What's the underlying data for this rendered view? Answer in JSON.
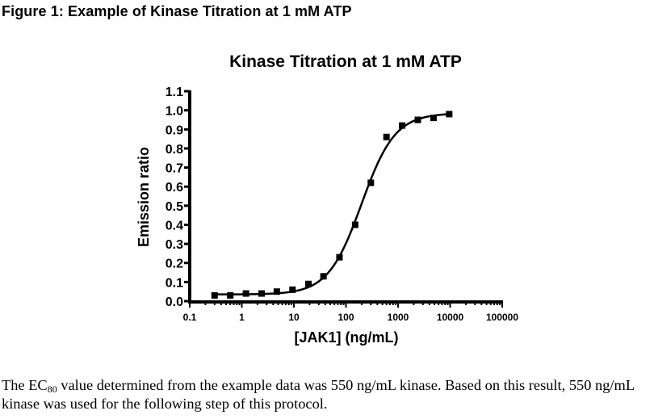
{
  "figure_caption": "Figure 1: Example of Kinase Titration at 1 mM ATP",
  "body_text": {
    "part1": "The EC",
    "subscript": "80",
    "part2": " value determined from the example data was 550 ng/mL kinase.  Based on this result, 550 ng/mL kinase was used for the following step of this protocol."
  },
  "chart_data": {
    "type": "scatter",
    "title": "Kinase Titration at 1 mM ATP",
    "xlabel": "[JAK1] (ng/mL)",
    "ylabel": "Emission ratio",
    "xscale": "log",
    "xlim": [
      0.1,
      100000
    ],
    "ylim": [
      0.0,
      1.1
    ],
    "xticks": [
      "0.1",
      "1",
      "10",
      "100",
      "1000",
      "10000",
      "100000"
    ],
    "xtick_values": [
      0.1,
      1,
      10,
      100,
      1000,
      10000,
      100000
    ],
    "yticks": [
      "0.0",
      "0.1",
      "0.2",
      "0.3",
      "0.4",
      "0.5",
      "0.6",
      "0.7",
      "0.8",
      "0.9",
      "1.0",
      "1.1"
    ],
    "ytick_values": [
      0.0,
      0.1,
      0.2,
      0.3,
      0.4,
      0.5,
      0.6,
      0.7,
      0.8,
      0.9,
      1.0,
      1.1
    ],
    "grid": false,
    "marker": "square",
    "series": [
      {
        "name": "JAK1",
        "x": [
          0.3,
          0.6,
          1.2,
          2.4,
          4.7,
          9.4,
          19,
          37,
          75,
          150,
          300,
          600,
          1200,
          2400,
          4800,
          9600
        ],
        "y": [
          0.03,
          0.03,
          0.04,
          0.04,
          0.05,
          0.06,
          0.09,
          0.13,
          0.23,
          0.4,
          0.62,
          0.86,
          0.92,
          0.95,
          0.96,
          0.98
        ]
      }
    ],
    "fit": {
      "type": "sigmoidal dose-response",
      "bottom": 0.035,
      "top": 0.985,
      "log_ec50": 2.3,
      "hill_slope": 1.35
    }
  }
}
